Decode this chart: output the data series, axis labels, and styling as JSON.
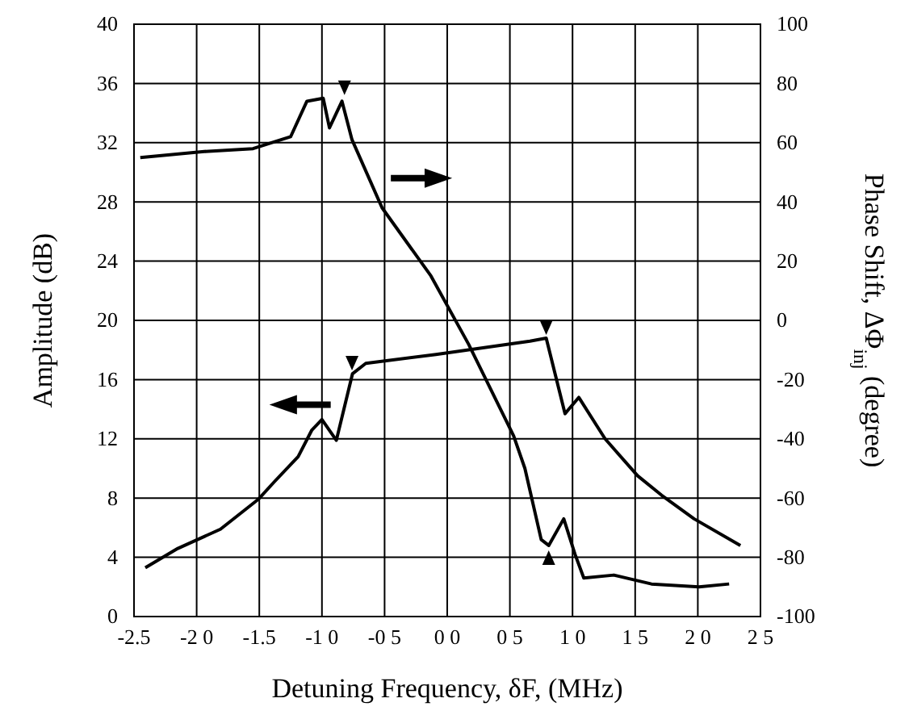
{
  "chart_data": {
    "type": "line",
    "xlabel": "Detuning Frequency, δF,  (MHz)",
    "ylabel": "Amplitude (dB)",
    "y2label": "Phase Shift, ΔΦ$_{inj}$ (degree)",
    "xlim": [
      -2.5,
      2.5
    ],
    "xticks": [
      -2.5,
      {
        "value": -2,
        "label": "-2 0"
      },
      -1.5,
      {
        "value": -1,
        "label": "-1 0"
      },
      {
        "value": -0.5,
        "label": "-0 5"
      },
      {
        "value": 0,
        "label": "0 0"
      },
      {
        "value": 0.5,
        "label": "0 5"
      },
      {
        "value": 1,
        "label": "1 0"
      },
      {
        "value": 1.5,
        "label": "1 5"
      },
      {
        "value": 2,
        "label": "2 0"
      },
      {
        "value": 2.5,
        "label": "2 5"
      }
    ],
    "ylim": [
      0,
      40
    ],
    "yticks": [
      0,
      4,
      8,
      12,
      16,
      20,
      24,
      28,
      32,
      36,
      40
    ],
    "y2lim": [
      -100,
      100
    ],
    "y2ticks": [
      -100,
      -80,
      -60,
      -40,
      -20,
      0,
      20,
      40,
      60,
      80,
      100
    ],
    "grid": true,
    "line_style": "solid",
    "marker": "none",
    "series": [
      {
        "color": "#000000",
        "x": [
          -2.41,
          -2.15,
          -1.81,
          -1.51,
          -1.38,
          -1.19,
          -1.08,
          -1.0,
          -0.885,
          -0.756,
          -0.65,
          -0.09,
          0.66,
          0.79,
          0.94,
          1.05,
          1.26,
          1.52,
          1.71,
          1.97,
          2.34
        ],
        "values": [
          3.3,
          4.6,
          5.9,
          7.9,
          9.1,
          10.8,
          12.6,
          13.3,
          11.9,
          16.4,
          17.1,
          17.7,
          18.6,
          18.8,
          13.7,
          14.8,
          12.0,
          9.5,
          8.2,
          6.6,
          4.8
        ]
      },
      {
        "color": "#000000",
        "axis": "y2",
        "x": [
          -2.45,
          -1.94,
          -1.55,
          -1.25,
          -1.12,
          -0.99,
          -0.94,
          -0.84,
          -0.76,
          -0.52,
          -0.13,
          0.17,
          0.53,
          0.62,
          0.75,
          0.81,
          0.93,
          1.02,
          1.09,
          1.33,
          1.63,
          2.01,
          2.25
        ],
        "values": [
          55,
          57,
          58,
          62,
          74,
          75,
          65,
          74,
          61,
          38,
          15,
          -8,
          -39,
          -50,
          -74,
          -76,
          -67,
          -79,
          -87,
          -86,
          -89,
          -90,
          -89
        ]
      }
    ]
  }
}
